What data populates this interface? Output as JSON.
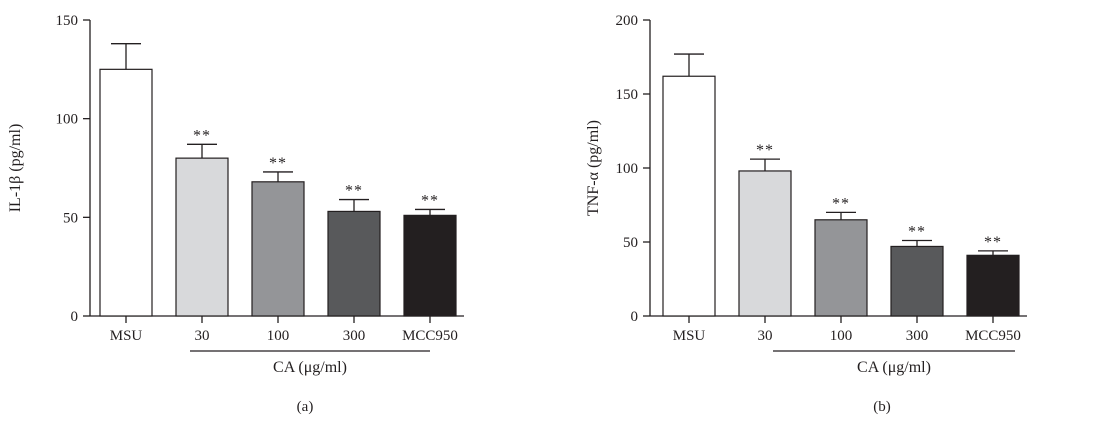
{
  "chart_data": [
    {
      "type": "bar",
      "panel_label": "(a)",
      "ylabel": "IL-1β (pg/ml)",
      "ylim": [
        0,
        150
      ],
      "yticks": [
        0,
        50,
        100,
        150
      ],
      "categories": [
        "MSU",
        "30",
        "100",
        "300",
        "MCC950"
      ],
      "values": [
        125,
        80,
        68,
        53,
        51
      ],
      "errors": [
        13,
        7,
        5,
        6,
        3
      ],
      "significance": [
        "",
        "**",
        "**",
        "**",
        "**"
      ],
      "colors": [
        "#ffffff",
        "#d8d9db",
        "#949598",
        "#58595b",
        "#231f20"
      ],
      "group_label": "CA (μg/ml)",
      "group_span": [
        1,
        3
      ]
    },
    {
      "type": "bar",
      "panel_label": "(b)",
      "ylabel": "TNF-α (pg/ml)",
      "ylim": [
        0,
        200
      ],
      "yticks": [
        0,
        50,
        100,
        150,
        200
      ],
      "categories": [
        "MSU",
        "30",
        "100",
        "300",
        "MCC950"
      ],
      "values": [
        162,
        98,
        65,
        47,
        41
      ],
      "errors": [
        15,
        8,
        5,
        4,
        3
      ],
      "significance": [
        "",
        "**",
        "**",
        "**",
        "**"
      ],
      "colors": [
        "#ffffff",
        "#d8d9db",
        "#949598",
        "#58595b",
        "#231f20"
      ],
      "group_label": "CA (μg/ml)",
      "group_span": [
        1,
        3
      ]
    }
  ]
}
